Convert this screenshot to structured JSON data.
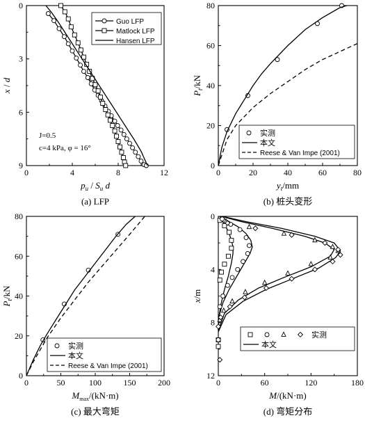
{
  "chart_data": [
    {
      "id": "a",
      "type": "line",
      "caption": "(a) LFP",
      "xlabel": "p_u / S_u d",
      "ylabel": "x / d",
      "xlim": [
        0,
        12
      ],
      "ylim": [
        0,
        9
      ],
      "y_inverted": true,
      "xticks": [
        "0",
        "4",
        "8",
        "12"
      ],
      "yticks": [
        "0",
        "3",
        "6",
        "9"
      ],
      "annotations": [
        "J=0.5",
        "c=4 kPa, φ = 16°"
      ],
      "legend": {
        "position": "top-right",
        "entries": [
          "Guo LFP",
          "Matlock LFP",
          "Hansen LFP"
        ]
      },
      "series": [
        {
          "name": "Guo LFP",
          "marker": "circle",
          "line": "solid",
          "x": [
            1.9,
            2.4,
            2.85,
            3.3,
            3.65,
            4.0,
            4.35,
            4.7,
            5.0,
            5.35,
            5.65,
            5.95,
            6.25,
            6.55,
            6.85,
            7.15,
            7.4,
            7.7,
            7.95,
            8.25,
            8.5,
            8.75,
            9.0,
            9.25,
            9.5,
            9.75,
            10.0,
            10.25,
            10.45
          ],
          "y": [
            0.45,
            0.85,
            1.3,
            1.75,
            2.15,
            2.55,
            2.95,
            3.35,
            3.7,
            4.05,
            4.4,
            4.75,
            5.05,
            5.35,
            5.65,
            5.95,
            6.2,
            6.5,
            6.75,
            7.0,
            7.25,
            7.5,
            7.75,
            8.0,
            8.25,
            8.5,
            8.75,
            8.95,
            9.0
          ]
        },
        {
          "name": "Matlock LFP",
          "marker": "square",
          "line": "solid",
          "x": [
            3.0,
            3.35,
            3.65,
            3.9,
            4.2,
            4.5,
            4.75,
            5.0,
            5.25,
            5.5,
            5.75,
            6.0,
            6.25,
            6.45,
            6.65,
            6.9,
            7.1,
            7.3,
            7.5,
            7.7,
            7.85,
            8.0,
            8.15,
            8.3,
            8.45,
            8.55,
            8.65
          ],
          "y": [
            0.0,
            0.35,
            0.75,
            1.2,
            1.65,
            2.1,
            2.5,
            2.9,
            3.3,
            3.7,
            4.1,
            4.45,
            4.8,
            5.15,
            5.5,
            5.85,
            6.15,
            6.45,
            6.75,
            7.05,
            7.35,
            7.65,
            7.95,
            8.25,
            8.55,
            8.8,
            9.0
          ]
        },
        {
          "name": "Hansen LFP",
          "marker": "none",
          "line": "solid",
          "x": [
            1.7,
            2.2,
            2.8,
            3.4,
            4.0,
            4.6,
            5.2,
            5.8,
            6.4,
            7.0,
            7.6,
            8.2,
            8.8,
            9.4,
            10.0,
            10.55
          ],
          "y": [
            0.0,
            0.4,
            0.95,
            1.55,
            2.15,
            2.75,
            3.35,
            3.95,
            4.55,
            5.15,
            5.75,
            6.35,
            6.95,
            7.55,
            8.2,
            9.0
          ]
        }
      ]
    },
    {
      "id": "b",
      "type": "line",
      "caption": "(b) 桩头变形",
      "xlabel": "y_t/mm",
      "ylabel": "P_t/kN",
      "xlim": [
        0,
        80
      ],
      "ylim": [
        0,
        80
      ],
      "xticks": [
        "0",
        "20",
        "40",
        "60",
        "80"
      ],
      "yticks": [
        "0",
        "20",
        "40",
        "60",
        "80"
      ],
      "legend": {
        "position": "bottom-right",
        "entries": [
          "实测",
          "本文",
          "Reese & Van Impe (2001)"
        ]
      },
      "series": [
        {
          "name": "实测",
          "marker": "circle",
          "line": "none",
          "x": [
            5,
            17,
            34,
            57,
            71
          ],
          "y": [
            18,
            35,
            53,
            71,
            80
          ]
        },
        {
          "name": "本文",
          "marker": "none",
          "line": "solid",
          "x": [
            0,
            2,
            5,
            10,
            15,
            20,
            25,
            30,
            40,
            50,
            60,
            70,
            74
          ],
          "y": [
            0,
            9,
            17,
            26,
            33,
            40,
            46,
            51,
            60,
            68,
            74,
            79,
            80
          ]
        },
        {
          "name": "Reese & Van Impe (2001)",
          "marker": "none",
          "line": "dashed",
          "x": [
            0,
            5,
            10,
            20,
            30,
            40,
            50,
            60,
            70,
            80
          ],
          "y": [
            0,
            13,
            20,
            29,
            36,
            42,
            48,
            53,
            57,
            61
          ]
        }
      ]
    },
    {
      "id": "c",
      "type": "line",
      "caption": "(c) 最大弯矩",
      "xlabel": "M_max/(kN·m)",
      "ylabel": "P_t/kN",
      "xlim": [
        0,
        200
      ],
      "ylim": [
        0,
        80
      ],
      "xticks": [
        "0",
        "50",
        "100",
        "150",
        "200"
      ],
      "yticks": [
        "0",
        "20",
        "40",
        "60",
        "80"
      ],
      "legend": {
        "position": "bottom-right",
        "entries": [
          "实测",
          "本文",
          "Reese & Van Impe (2001)"
        ]
      },
      "series": [
        {
          "name": "实测",
          "marker": "circle",
          "line": "none",
          "x": [
            24,
            55,
            90,
            133
          ],
          "y": [
            18,
            36,
            53,
            71
          ]
        },
        {
          "name": "本文",
          "marker": "none",
          "line": "solid",
          "x": [
            0,
            10,
            20,
            30,
            50,
            70,
            90,
            110,
            130,
            145,
            158
          ],
          "y": [
            0,
            8,
            15,
            21,
            32,
            43,
            52,
            61,
            70,
            76,
            80
          ]
        },
        {
          "name": "Reese & Van Impe (2001)",
          "marker": "none",
          "line": "dashed",
          "x": [
            0,
            10,
            20,
            30,
            50,
            70,
            90,
            110,
            130,
            150,
            172
          ],
          "y": [
            0,
            7,
            13,
            19,
            29,
            38,
            47,
            55,
            63,
            71,
            80
          ]
        }
      ]
    },
    {
      "id": "d",
      "type": "line",
      "caption": "(d) 弯矩分布",
      "xlabel": "M/(kN·m)",
      "ylabel": "x/m",
      "xlim": [
        0,
        180
      ],
      "ylim": [
        0,
        12
      ],
      "y_inverted": true,
      "xticks": [
        "0",
        "60",
        "120",
        "180"
      ],
      "yticks": [
        "0",
        "4",
        "8",
        "12"
      ],
      "legend": {
        "position": "bottom-right",
        "entries": [
          "实测",
          "本文"
        ]
      },
      "measured": [
        {
          "marker": "square",
          "x": [
            2,
            8,
            14,
            17,
            17,
            13,
            8,
            4,
            2,
            0,
            0
          ],
          "y": [
            0.3,
            0.7,
            1.2,
            1.8,
            2.4,
            3.0,
            3.6,
            4.2,
            4.8,
            9.3,
            9.8
          ]
        },
        {
          "marker": "circle",
          "x": [
            5,
            16,
            28,
            36,
            40,
            38,
            32,
            25,
            18,
            12,
            6,
            2,
            0
          ],
          "y": [
            0.2,
            0.6,
            1.0,
            1.6,
            2.2,
            2.8,
            3.4,
            4.0,
            4.6,
            5.2,
            6.0,
            6.8,
            9.3
          ]
        },
        {
          "marker": "triangle",
          "x": [
            10,
            40,
            85,
            125,
            148,
            155,
            145,
            120,
            90,
            60,
            35,
            18,
            7,
            2
          ],
          "y": [
            0.4,
            0.8,
            1.3,
            1.8,
            2.3,
            2.6,
            3.1,
            3.6,
            4.3,
            5.0,
            5.7,
            6.4,
            7.1,
            7.8
          ]
        },
        {
          "marker": "diamond",
          "x": [
            12,
            48,
            95,
            138,
            155,
            158,
            148,
            125,
            95,
            62,
            34,
            15,
            3,
            0,
            2
          ],
          "y": [
            0.5,
            0.9,
            1.4,
            2.0,
            2.5,
            2.9,
            3.4,
            4.0,
            4.7,
            5.4,
            6.1,
            6.8,
            7.6,
            8.3,
            10.8
          ]
        }
      ],
      "model": [
        {
          "x": [
            2,
            6,
            10,
            14,
            17,
            19,
            19,
            17,
            13,
            8,
            4,
            1,
            0
          ],
          "y": [
            0,
            0.4,
            0.8,
            1.3,
            1.8,
            2.3,
            2.8,
            3.5,
            4.5,
            5.5,
            6.5,
            7.5,
            8.5
          ]
        },
        {
          "x": [
            3,
            14,
            26,
            36,
            42,
            44,
            41,
            34,
            24,
            14,
            6,
            1,
            0
          ],
          "y": [
            0,
            0.4,
            0.8,
            1.3,
            1.8,
            2.3,
            2.8,
            3.5,
            4.5,
            5.5,
            6.5,
            7.5,
            8.5
          ]
        },
        {
          "x": [
            4,
            30,
            70,
            112,
            138,
            150,
            145,
            120,
            85,
            52,
            26,
            8,
            0
          ],
          "y": [
            0,
            0.4,
            0.9,
            1.5,
            2.0,
            2.5,
            3.0,
            3.8,
            4.6,
            5.4,
            6.3,
            7.3,
            8.6
          ]
        },
        {
          "x": [
            5,
            36,
            82,
            125,
            150,
            158,
            152,
            130,
            96,
            62,
            32,
            10,
            0
          ],
          "y": [
            0,
            0.4,
            0.9,
            1.5,
            2.0,
            2.6,
            3.1,
            3.9,
            4.7,
            5.5,
            6.4,
            7.4,
            8.7
          ]
        }
      ]
    }
  ]
}
